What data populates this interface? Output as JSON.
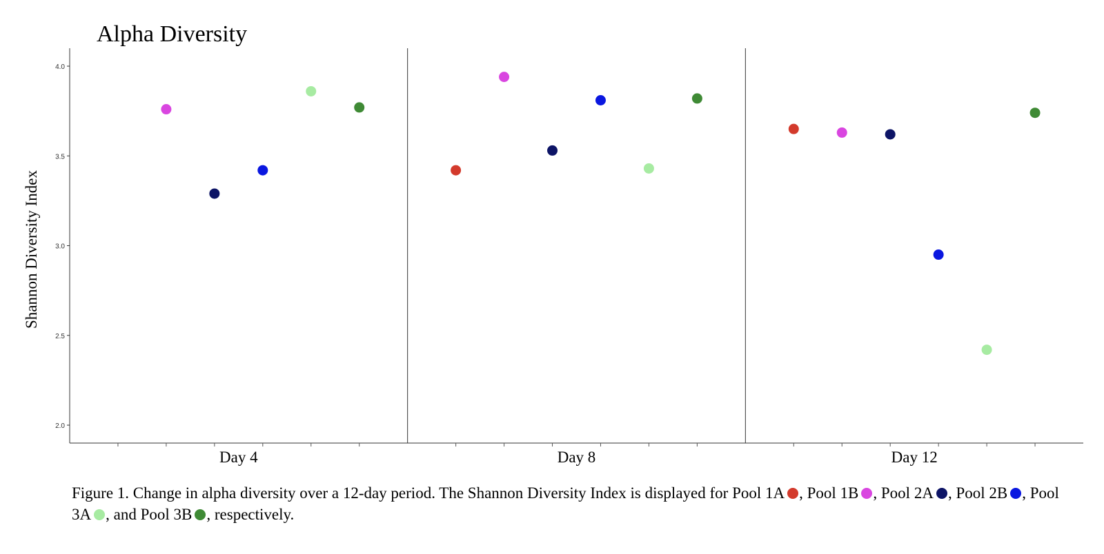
{
  "chart_data": {
    "type": "scatter",
    "title": "Alpha Diversity",
    "xlabel": "",
    "ylabel": "Shannon Diversity Index",
    "ylim": [
      1.9,
      4.1
    ],
    "yticks": [
      "2.0",
      "2.5",
      "3.0",
      "3.5",
      "4.0"
    ],
    "panels": [
      "Day 4",
      "Day 8",
      "Day 12"
    ],
    "series": [
      {
        "name": "Pool 1A",
        "color": "#d33a2c",
        "values": [
          null,
          3.42,
          3.65
        ]
      },
      {
        "name": "Pool 1B",
        "color": "#d946e0",
        "values": [
          3.76,
          3.94,
          3.63
        ]
      },
      {
        "name": "Pool 2A",
        "color": "#0d1466",
        "values": [
          3.29,
          3.53,
          3.62
        ]
      },
      {
        "name": "Pool 2B",
        "color": "#0a17e0",
        "values": [
          3.42,
          3.81,
          2.95
        ]
      },
      {
        "name": "Pool 3A",
        "color": "#a7eba2",
        "values": [
          3.86,
          3.43,
          2.42
        ]
      },
      {
        "name": "Pool 3B",
        "color": "#3f8a35",
        "values": [
          3.77,
          3.82,
          3.74
        ]
      }
    ]
  },
  "caption": {
    "prefix": "Figure 1. Change in alpha diversity over a 12-day period. The Shannon Diversity Index is displayed for ",
    "items": [
      {
        "label": "Pool 1A",
        "sep": ", "
      },
      {
        "label": "Pool 1B",
        "sep": ", "
      },
      {
        "label": "Pool 2A",
        "sep": ", "
      },
      {
        "label": "Pool 2B",
        "sep": ", "
      },
      {
        "label": "Pool 3A",
        "sep": ", and "
      },
      {
        "label": "Pool 3B",
        "sep": ", respectively."
      }
    ]
  }
}
